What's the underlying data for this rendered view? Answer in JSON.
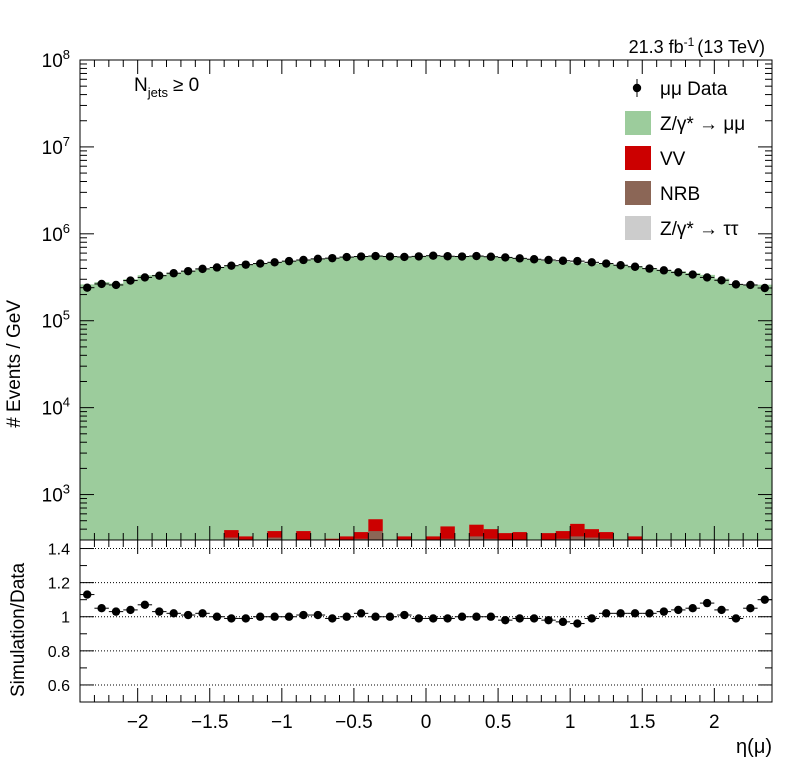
{
  "header": {
    "lumi_label": "21.3 fb",
    "lumi_sup": "-1",
    "energy_label": "(13 TeV)"
  },
  "annotation": {
    "njets_main": "N",
    "njets_sub": "jets",
    "njets_rest": "≥ 0"
  },
  "colors": {
    "zmumu": "#9ccc9c",
    "vv": "#cc0000",
    "nrb": "#8b6656",
    "ztautau": "#cccccc",
    "data": "#000000"
  },
  "legend": [
    {
      "key": "data",
      "marker": "point",
      "label": "μμ Data"
    },
    {
      "key": "zmumu",
      "marker": "box",
      "label": "Z/γ* → μμ"
    },
    {
      "key": "vv",
      "marker": "box",
      "label": "VV"
    },
    {
      "key": "nrb",
      "marker": "box",
      "label": "NRB"
    },
    {
      "key": "ztautau",
      "marker": "box",
      "label": "Z/γ* → ττ"
    }
  ],
  "chart_data": [
    {
      "type": "bar",
      "panel": "main",
      "ylabel": "# Events / GeV",
      "yscale": "log",
      "ylim": [
        300,
        100000000
      ],
      "xlim": [
        -2.4,
        2.4
      ],
      "y_ticks": [
        1000,
        10000,
        100000,
        1000000,
        10000000,
        100000000
      ],
      "y_tick_labels": [
        "10^3",
        "10^4",
        "10^5",
        "10^6",
        "10^7",
        "10^8"
      ],
      "bin_width": 0.1,
      "x_centers": [
        -2.35,
        -2.25,
        -2.15,
        -2.05,
        -1.95,
        -1.85,
        -1.75,
        -1.65,
        -1.55,
        -1.45,
        -1.35,
        -1.25,
        -1.15,
        -1.05,
        -0.95,
        -0.85,
        -0.75,
        -0.65,
        -0.55,
        -0.45,
        -0.35,
        -0.25,
        -0.15,
        -0.05,
        0.05,
        0.15,
        0.25,
        0.35,
        0.45,
        0.55,
        0.65,
        0.75,
        0.85,
        0.95,
        1.05,
        1.15,
        1.25,
        1.35,
        1.45,
        1.55,
        1.65,
        1.75,
        1.85,
        1.95,
        2.05,
        2.15,
        2.25,
        2.35
      ],
      "series": [
        {
          "name": "μμ Data",
          "style": "points",
          "values": [
            240000,
            265000,
            258000,
            290000,
            315000,
            330000,
            352000,
            372000,
            395000,
            410000,
            430000,
            442000,
            455000,
            470000,
            485000,
            500000,
            515000,
            525000,
            540000,
            548000,
            555000,
            548000,
            542000,
            550000,
            560000,
            552000,
            548000,
            555000,
            545000,
            535000,
            522000,
            510000,
            500000,
            490000,
            485000,
            470000,
            455000,
            435000,
            418000,
            398000,
            380000,
            360000,
            340000,
            315000,
            292000,
            262000,
            258000,
            238000
          ]
        },
        {
          "name": "Z/γ* → μμ",
          "style": "stack",
          "values": [
            262000,
            278000,
            268000,
            300000,
            334000,
            337000,
            356000,
            376000,
            399000,
            414000,
            430000,
            442000,
            460000,
            474000,
            485000,
            500000,
            515000,
            525000,
            540000,
            553000,
            561000,
            553000,
            547000,
            555000,
            555000,
            547000,
            548000,
            555000,
            545000,
            530000,
            517000,
            505000,
            490000,
            476000,
            466000,
            456000,
            450000,
            435000,
            422000,
            402000,
            384000,
            370000,
            354000,
            337000,
            305000,
            259000,
            260000,
            260000
          ]
        },
        {
          "name": "VV",
          "style": "stack",
          "values": [
            0,
            0,
            0,
            0,
            0,
            0,
            0,
            0,
            0,
            0,
            390,
            330,
            0,
            380,
            0,
            380,
            0,
            310,
            330,
            370,
            520,
            280,
            330,
            0,
            330,
            430,
            0,
            450,
            400,
            360,
            370,
            0,
            360,
            380,
            460,
            400,
            370,
            0,
            330,
            0,
            0,
            0,
            0,
            0,
            0,
            280,
            0,
            0
          ]
        },
        {
          "name": "NRB",
          "style": "stack",
          "values": [
            0,
            0,
            0,
            0,
            0,
            0,
            0,
            0,
            0,
            0,
            320,
            0,
            0,
            320,
            0,
            300,
            0,
            0,
            0,
            310,
            380,
            0,
            0,
            0,
            300,
            310,
            0,
            330,
            310,
            0,
            0,
            0,
            0,
            310,
            330,
            320,
            310,
            0,
            0,
            0,
            0,
            0,
            0,
            0,
            0,
            0,
            0,
            0
          ]
        }
      ]
    },
    {
      "type": "scatter",
      "panel": "ratio",
      "ylabel": "Simulation/Data",
      "xlabel": "η(μ)",
      "ylim": [
        0.5,
        1.45
      ],
      "xlim": [
        -2.4,
        2.4
      ],
      "y_ticks": [
        0.6,
        0.8,
        1,
        1.2,
        1.4
      ],
      "y_tick_labels": [
        "0.6",
        "0.8",
        "1",
        "1.2",
        "1.4"
      ],
      "x_ticks": [
        -2,
        -1.5,
        -1,
        -0.5,
        0,
        0.5,
        1,
        1.5,
        2
      ],
      "x_tick_labels": [
        "−2",
        "−1.5",
        "−1",
        "−0.5",
        "0",
        "0.5",
        "1",
        "1.5",
        "2"
      ],
      "grid_y": [
        0.6,
        0.8,
        1,
        1.2,
        1.4
      ],
      "x": [
        -2.35,
        -2.25,
        -2.15,
        -2.05,
        -1.95,
        -1.85,
        -1.75,
        -1.65,
        -1.55,
        -1.45,
        -1.35,
        -1.25,
        -1.15,
        -1.05,
        -0.95,
        -0.85,
        -0.75,
        -0.65,
        -0.55,
        -0.45,
        -0.35,
        -0.25,
        -0.15,
        -0.05,
        0.05,
        0.15,
        0.25,
        0.35,
        0.45,
        0.55,
        0.65,
        0.75,
        0.85,
        0.95,
        1.05,
        1.15,
        1.25,
        1.35,
        1.45,
        1.55,
        1.65,
        1.75,
        1.85,
        1.95,
        2.05,
        2.15,
        2.25,
        2.35
      ],
      "y": [
        1.13,
        1.05,
        1.03,
        1.04,
        1.07,
        1.03,
        1.02,
        1.01,
        1.02,
        1.0,
        0.99,
        0.99,
        1.0,
        1.0,
        1.0,
        1.01,
        1.01,
        0.99,
        1.0,
        1.02,
        1.0,
        1.0,
        1.01,
        0.99,
        0.99,
        0.99,
        1.0,
        1.0,
        1.0,
        0.98,
        0.99,
        0.99,
        0.98,
        0.97,
        0.96,
        0.99,
        1.02,
        1.02,
        1.02,
        1.02,
        1.03,
        1.04,
        1.05,
        1.08,
        1.04,
        0.99,
        1.05,
        1.1
      ]
    }
  ]
}
